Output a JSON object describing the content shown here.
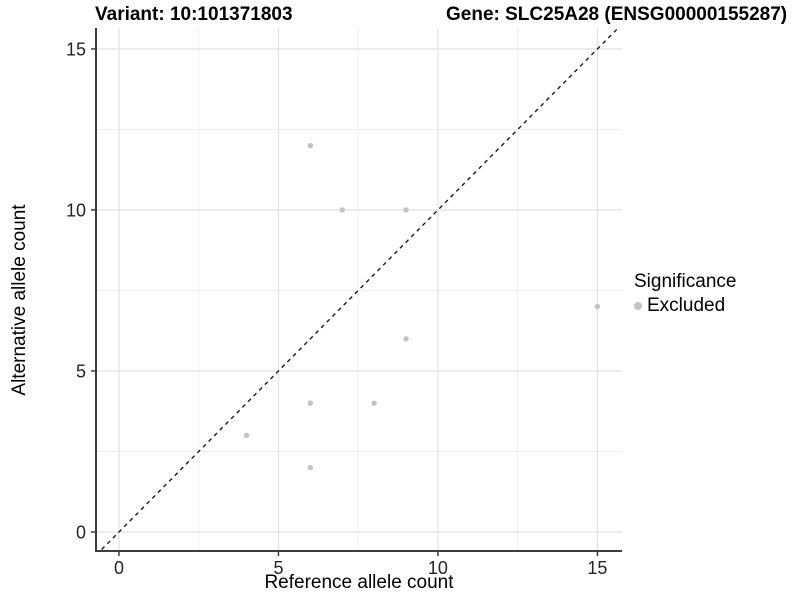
{
  "chart_data": {
    "type": "scatter",
    "title_left": "Variant: 10:101371803",
    "title_right": "Gene: SLC25A28 (ENSG00000155287)",
    "xlabel": "Reference allele count",
    "ylabel": "Alternative allele count",
    "xlim": [
      -0.72,
      15.77
    ],
    "ylim": [
      -0.59,
      15.65
    ],
    "x_ticks": {
      "values": [
        0,
        5,
        10,
        15
      ],
      "labels": [
        "0",
        "5",
        "10",
        "15"
      ]
    },
    "y_ticks": {
      "values": [
        0,
        5,
        10,
        15
      ],
      "labels": [
        "0",
        "5",
        "10",
        "15"
      ]
    },
    "x_minor_breaks": [
      2.5,
      7.5,
      12.5
    ],
    "y_minor_breaks": [
      2.5,
      7.5,
      12.5
    ],
    "grid": "major+minor",
    "reference_line": {
      "type": "identity",
      "slope": 1,
      "intercept": 0,
      "style": "dashed"
    },
    "series": [
      {
        "name": "Excluded",
        "marker": "circle",
        "color": "#c3c3c3",
        "points": [
          [
            4,
            3
          ],
          [
            6,
            2
          ],
          [
            6,
            4
          ],
          [
            6,
            12
          ],
          [
            7,
            10
          ],
          [
            8,
            4
          ],
          [
            9,
            6
          ],
          [
            9,
            10
          ],
          [
            15,
            7
          ]
        ]
      }
    ],
    "legend": {
      "title": "Significance",
      "position": "right",
      "entries": [
        {
          "label": "Excluded",
          "color": "#c3c3c3"
        }
      ]
    },
    "colors": {
      "background": "#ffffff",
      "grid_major": "#e3e3e3",
      "grid_minor": "#efefef",
      "axis_line": "#3c3c3c",
      "tick_text": "#262626",
      "title_text": "#000000",
      "reference_line": "#1a1a1a",
      "point": "#c3c3c3"
    }
  }
}
